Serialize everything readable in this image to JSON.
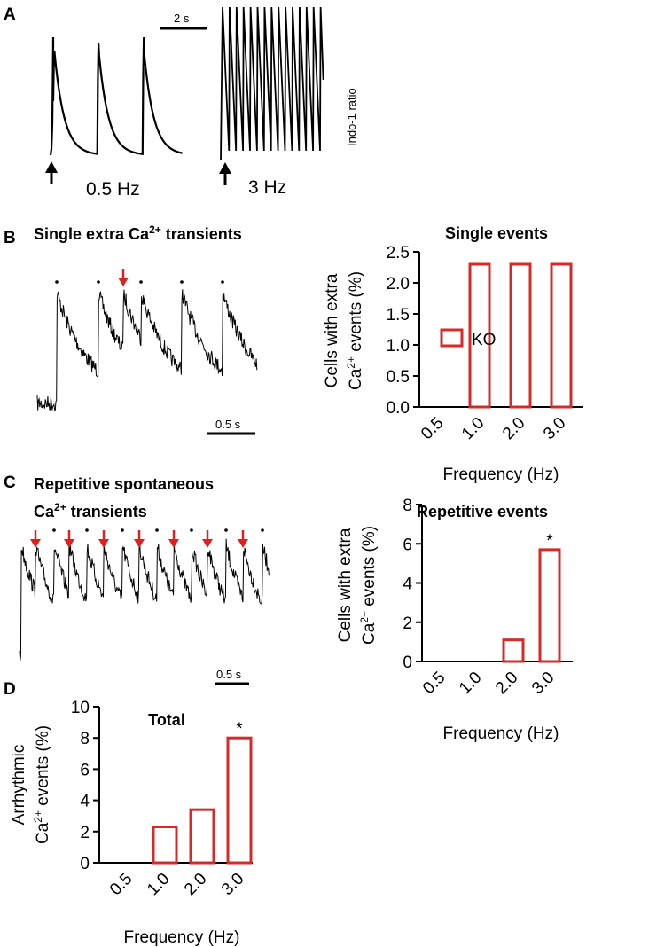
{
  "panels": {
    "a": {
      "label": "A",
      "scale_bar": "2 s",
      "left_rate": "0.5 Hz",
      "right_rate": "3 Hz",
      "y_label": "Indo-1 ratio"
    },
    "b": {
      "label": "B",
      "trace_title_pre": "Single extra Ca",
      "trace_title_sup": "2+",
      "trace_title_post": " transients",
      "scale_bar": "0.5 s"
    },
    "c": {
      "label": "C",
      "trace_title_line1": "Repetitive spontaneous",
      "trace_title_line2_pre": "Ca",
      "trace_title_line2_sup": "2+",
      "trace_title_line2_post": " transients",
      "scale_bar": "0.5 s"
    },
    "d": {
      "label": "D"
    }
  },
  "legend": {
    "label": "KO",
    "color": "#d42a2a"
  },
  "chart_data": [
    {
      "id": "single",
      "type": "bar",
      "title": "Single events",
      "categories": [
        "0.5",
        "1.0",
        "2.0",
        "3.0"
      ],
      "values": [
        0,
        2.3,
        2.3,
        2.3
      ],
      "ylim": [
        0,
        2.5
      ],
      "yticks": [
        "0.0",
        "0.5",
        "1.0",
        "1.5",
        "2.0",
        "2.5"
      ],
      "ylabel_line1": "Cells with extra",
      "ylabel_line2_pre": "Ca",
      "ylabel_line2_sup": "2+",
      "ylabel_line2_post": " events (%)",
      "xlabel": "Frequency (Hz)",
      "significance": [
        "",
        "",
        "",
        ""
      ],
      "series": [
        {
          "name": "KO",
          "values": [
            0,
            2.3,
            2.3,
            2.3
          ]
        }
      ]
    },
    {
      "id": "repetitive",
      "type": "bar",
      "title": "Repetitive events",
      "categories": [
        "0.5",
        "1.0",
        "2.0",
        "3.0"
      ],
      "values": [
        0,
        0,
        1.1,
        5.7
      ],
      "ylim": [
        0,
        8
      ],
      "yticks": [
        "0",
        "2",
        "4",
        "6",
        "8"
      ],
      "ylabel_line1": "Cells with extra",
      "ylabel_line2_pre": "Ca",
      "ylabel_line2_sup": "2+",
      "ylabel_line2_post": " events (%)",
      "xlabel": "Frequency (Hz)",
      "significance": [
        "",
        "",
        "",
        "*"
      ],
      "series": [
        {
          "name": "KO",
          "values": [
            0,
            0,
            1.1,
            5.7
          ]
        }
      ]
    },
    {
      "id": "total",
      "type": "bar",
      "title": "Total",
      "categories": [
        "0.5",
        "1.0",
        "2.0",
        "3.0"
      ],
      "values": [
        0,
        2.3,
        3.4,
        8.0
      ],
      "ylim": [
        0,
        10
      ],
      "yticks": [
        "0",
        "2",
        "4",
        "6",
        "8",
        "10"
      ],
      "ylabel_line1": "Arrhythmic",
      "ylabel_line2_pre": "Ca",
      "ylabel_line2_sup": "2+",
      "ylabel_line2_post": " events (%)",
      "xlabel": "Frequency (Hz)",
      "significance": [
        "",
        "",
        "",
        "*"
      ],
      "series": [
        {
          "name": "KO",
          "values": [
            0,
            2.3,
            3.4,
            8.0
          ]
        }
      ]
    }
  ]
}
